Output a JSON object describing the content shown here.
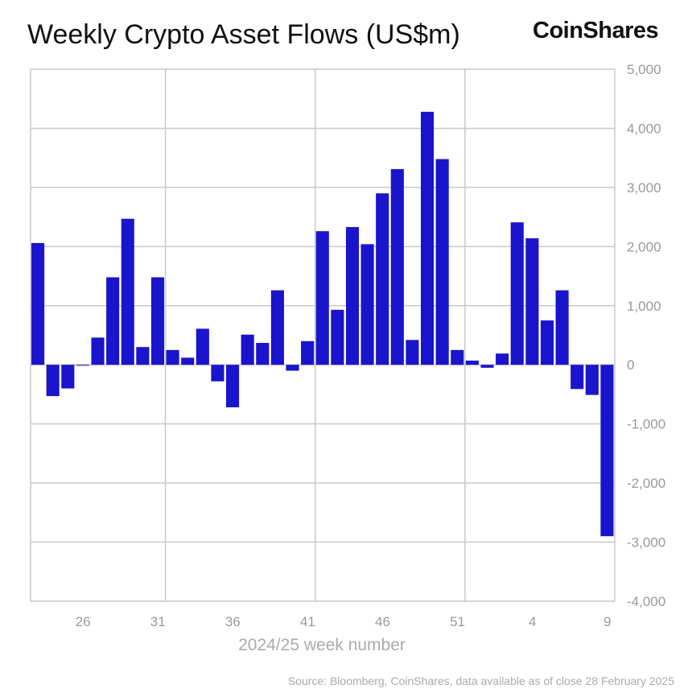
{
  "title": "Weekly Crypto Asset Flows (US$m)",
  "brand": "CoinShares",
  "source": "Source: Bloomberg, CoinShares, data available as of close 28 February 2025",
  "chart_data": {
    "type": "bar",
    "title": "Weekly Crypto Asset Flows (US$m)",
    "xlabel": "2024/25 week number",
    "ylabel": "",
    "ylim": [
      -4000,
      5000
    ],
    "yticks": [
      5000,
      4000,
      3000,
      2000,
      1000,
      0,
      -1000,
      -2000,
      -3000,
      -4000
    ],
    "ytick_labels": [
      "5,000",
      "4,000",
      "3,000",
      "2,000",
      "1,000",
      "0",
      "-1,000",
      "-2,000",
      "-3,000",
      "-4,000"
    ],
    "y_axis_side": "right",
    "xtick_labels": [
      "26",
      "31",
      "36",
      "41",
      "46",
      "51",
      "4",
      "9"
    ],
    "grid": true,
    "bar_color": "#1a14cc",
    "categories": [
      "23",
      "24",
      "25",
      "26",
      "27",
      "28",
      "29",
      "30",
      "31",
      "32",
      "33",
      "34",
      "35",
      "36",
      "37",
      "38",
      "39",
      "40",
      "41",
      "42",
      "43",
      "44",
      "45",
      "46",
      "47",
      "48",
      "49",
      "50",
      "51",
      "52",
      "1",
      "2",
      "3",
      "4",
      "5",
      "6",
      "7",
      "8",
      "9"
    ],
    "values": [
      2060,
      -530,
      -400,
      -15,
      460,
      1480,
      2470,
      300,
      1480,
      250,
      120,
      610,
      -280,
      -720,
      510,
      370,
      1260,
      -100,
      400,
      2260,
      930,
      2330,
      2040,
      2900,
      3310,
      420,
      4280,
      3480,
      250,
      70,
      -50,
      190,
      2410,
      2140,
      750,
      1260,
      -410,
      -510,
      -2900
    ]
  }
}
